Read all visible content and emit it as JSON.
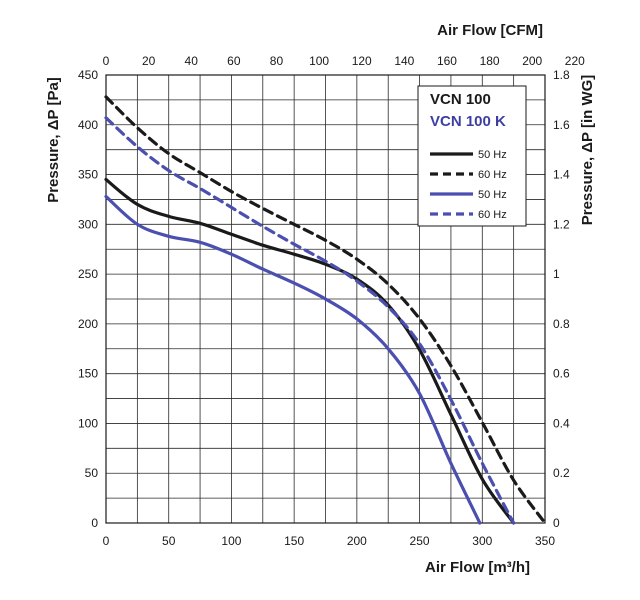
{
  "chart_data": {
    "type": "line",
    "x": [
      0,
      25,
      50,
      75,
      100,
      125,
      150,
      175,
      200,
      225,
      250,
      275,
      300,
      325,
      350
    ],
    "xlim": [
      0,
      350
    ],
    "ylim": [
      0,
      450
    ],
    "x2lim": [
      0,
      220
    ],
    "y2lim": [
      0,
      1.8
    ],
    "xlabel": "Air Flow [m³/h]",
    "ylabel": "Pressure, ΔP [Pa]",
    "x2label": "Air Flow [CFM]",
    "y2label": "Pressure, ΔP [in WG]",
    "xticks": [
      "0",
      "50",
      "100",
      "150",
      "200",
      "250",
      "300",
      "350"
    ],
    "yticks": [
      "0",
      "50",
      "100",
      "150",
      "200",
      "250",
      "300",
      "350",
      "400",
      "450"
    ],
    "x2ticks": [
      "0",
      "20",
      "40",
      "60",
      "80",
      "100",
      "120",
      "140",
      "160",
      "180",
      "200",
      "220"
    ],
    "y2ticks": [
      "0",
      "0.2",
      "0.4",
      "0.6",
      "0.8",
      "1",
      "1.2",
      "1.4",
      "1.6",
      "1.8"
    ],
    "grid": true,
    "legend_position": "top-right",
    "legend_titles": [
      {
        "text": "VCN 100",
        "color": "#1a1a1a"
      },
      {
        "text": "VCN 100  K",
        "color": "#3d3fa0"
      }
    ],
    "series": [
      {
        "name": "50 Hz",
        "color": "#1a1a1a",
        "dash": "solid",
        "x": [
          0,
          25,
          50,
          75,
          100,
          125,
          150,
          175,
          200,
          225,
          250,
          275,
          300,
          325
        ],
        "y": [
          345,
          320,
          308,
          301,
          290,
          279,
          270,
          260,
          245,
          219,
          174,
          109,
          44,
          0
        ]
      },
      {
        "name": "60 Hz",
        "color": "#1a1a1a",
        "dash": "dashed",
        "x": [
          0,
          25,
          50,
          75,
          100,
          125,
          150,
          175,
          200,
          225,
          250,
          275,
          300,
          325,
          350
        ],
        "y": [
          428,
          397,
          371,
          352,
          333,
          316,
          300,
          284,
          265,
          240,
          205,
          158,
          101,
          43,
          0
        ]
      },
      {
        "name": "50 Hz",
        "color": "#4a4fb0",
        "dash": "solid",
        "x": [
          0,
          25,
          50,
          75,
          100,
          125,
          150,
          175,
          200,
          225,
          250,
          275,
          298
        ],
        "y": [
          328,
          300,
          288,
          282,
          270,
          255,
          241,
          225,
          205,
          175,
          130,
          60,
          0
        ]
      },
      {
        "name": "60 Hz",
        "color": "#4a4fb0",
        "dash": "dashed",
        "x": [
          0,
          25,
          50,
          75,
          100,
          125,
          150,
          175,
          200,
          225,
          250,
          275,
          300,
          325
        ],
        "y": [
          407,
          378,
          354,
          336,
          317,
          298,
          280,
          263,
          243,
          217,
          180,
          124,
          60,
          0
        ]
      }
    ]
  }
}
